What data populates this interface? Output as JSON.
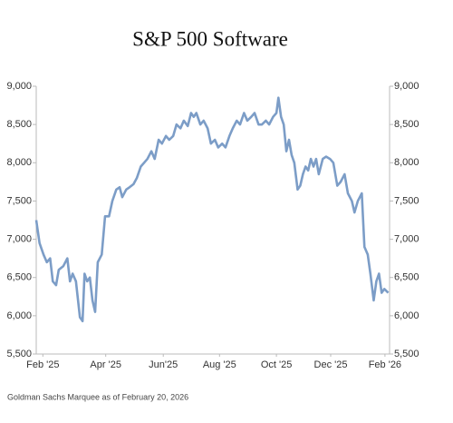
{
  "chart_data": {
    "type": "line",
    "title": "S&P 500 Software",
    "source": "Goldman Sachs Marquee as of February 20, 2026",
    "x": [
      0,
      0.5,
      1.1,
      1.6,
      2.1,
      2.5,
      3.0,
      3.4,
      4.1,
      4.7,
      5.1,
      5.5,
      6.0,
      6.6,
      7.0,
      7.3,
      7.7,
      8.1,
      8.5,
      8.9,
      9.3,
      9.9,
      10.4,
      11.0,
      11.5,
      12.1,
      12.6,
      13.0,
      13.6,
      14.1,
      14.7,
      15.2,
      15.8,
      16.3,
      16.8,
      17.4,
      17.9,
      18.5,
      19.0,
      19.6,
      20.1,
      20.7,
      21.2,
      21.8,
      22.3,
      22.9,
      23.4,
      23.8,
      24.2,
      24.8,
      25.3,
      25.9,
      26.4,
      27.0,
      27.5,
      28.1,
      28.6,
      29.2,
      29.7,
      30.3,
      30.8,
      31.4,
      31.9,
      32.5,
      33.0,
      33.6,
      34.1,
      34.7,
      35.2,
      35.8,
      36.3,
      36.6,
      37.0,
      37.4,
      37.8,
      38.2,
      38.6,
      39.0,
      39.5,
      39.9,
      40.3,
      40.7,
      41.1,
      41.5,
      41.9,
      42.3,
      42.7,
      43.3,
      43.8,
      44.4,
      44.9,
      45.5,
      46.0,
      46.6,
      47.1,
      47.7,
      48.1,
      48.6,
      49.2,
      49.6,
      50.1,
      50.5,
      51.0,
      51.4,
      51.8,
      52.2,
      52.6,
      53.2
    ],
    "series": [
      {
        "name": "S&P 500 Software",
        "color": "#7c9dc7",
        "values": [
          7250,
          6950,
          6800,
          6700,
          6750,
          6450,
          6400,
          6600,
          6650,
          6750,
          6450,
          6550,
          6450,
          5980,
          5930,
          6550,
          6450,
          6500,
          6200,
          6050,
          6700,
          6800,
          7300,
          7300,
          7500,
          7650,
          7680,
          7550,
          7650,
          7680,
          7720,
          7800,
          7950,
          8000,
          8050,
          8150,
          8050,
          8300,
          8250,
          8350,
          8300,
          8350,
          8500,
          8450,
          8550,
          8480,
          8650,
          8600,
          8650,
          8500,
          8550,
          8450,
          8250,
          8300,
          8200,
          8250,
          8200,
          8350,
          8450,
          8550,
          8500,
          8650,
          8550,
          8600,
          8650,
          8500,
          8500,
          8550,
          8500,
          8600,
          8650,
          8850,
          8600,
          8500,
          8150,
          8300,
          8100,
          8000,
          7650,
          7700,
          7850,
          7950,
          7900,
          8050,
          7950,
          8050,
          7850,
          8050,
          8080,
          8050,
          8000,
          7700,
          7750,
          7850,
          7600,
          7500,
          7350,
          7500,
          7600,
          6900,
          6800,
          6550,
          6200,
          6450,
          6550,
          6300,
          6350,
          6300
        ]
      }
    ],
    "xlim": [
      0,
      53.4
    ],
    "xticks": [
      {
        "value": 1,
        "label": "Feb '25"
      },
      {
        "value": 10.5,
        "label": "Apr '25"
      },
      {
        "value": 19.2,
        "label": "Jun'25"
      },
      {
        "value": 27.7,
        "label": "Aug '25"
      },
      {
        "value": 36.3,
        "label": "Oct '25"
      },
      {
        "value": 44.5,
        "label": "Dec '25"
      },
      {
        "value": 52.7,
        "label": "Feb '26"
      }
    ],
    "ylim": [
      5500,
      9000
    ],
    "yticks": [
      {
        "value": 5500,
        "label": "5,500"
      },
      {
        "value": 6000,
        "label": "6,000"
      },
      {
        "value": 6500,
        "label": "6,500"
      },
      {
        "value": 7000,
        "label": "7,000"
      },
      {
        "value": 7500,
        "label": "7,500"
      },
      {
        "value": 8000,
        "label": "8,000"
      },
      {
        "value": 8500,
        "label": "8,500"
      },
      {
        "value": 9000,
        "label": "9,000"
      }
    ],
    "y2lim": [
      5500,
      9000
    ],
    "y2ticks": [
      {
        "value": 5500,
        "label": "5,500"
      },
      {
        "value": 6000,
        "label": "6,000"
      },
      {
        "value": 6500,
        "label": "6,500"
      },
      {
        "value": 7000,
        "label": "7,000"
      },
      {
        "value": 7500,
        "label": "7,500"
      },
      {
        "value": 8000,
        "label": "8,000"
      },
      {
        "value": 8500,
        "label": "8,500"
      },
      {
        "value": 9000,
        "label": "9,000"
      }
    ]
  }
}
